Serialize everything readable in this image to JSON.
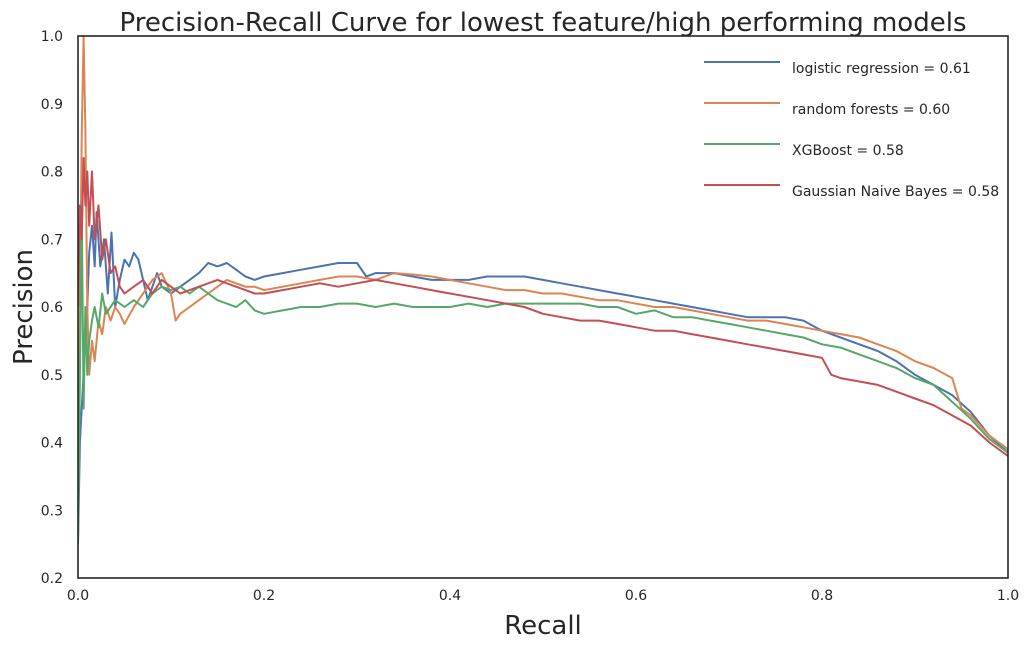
{
  "chart_data": {
    "type": "line",
    "title": "Precision-Recall Curve for lowest feature/high performing models",
    "xlabel": "Recall",
    "ylabel": "Precision",
    "xlim": [
      0.0,
      1.0
    ],
    "ylim": [
      0.2,
      1.0
    ],
    "xticks": [
      "0.0",
      "0.2",
      "0.4",
      "0.6",
      "0.8",
      "1.0"
    ],
    "yticks": [
      "0.2",
      "0.3",
      "0.4",
      "0.5",
      "0.6",
      "0.7",
      "0.8",
      "0.9",
      "1.0"
    ],
    "grid": false,
    "legend_position": "top-right",
    "series": [
      {
        "name": "logistic regression = 0.61",
        "color": "#4c72b0",
        "points": [
          [
            0.0,
            0.25
          ],
          [
            0.002,
            0.4
          ],
          [
            0.004,
            0.45
          ],
          [
            0.006,
            0.5
          ],
          [
            0.008,
            0.55
          ],
          [
            0.01,
            0.6
          ],
          [
            0.012,
            0.68
          ],
          [
            0.015,
            0.72
          ],
          [
            0.018,
            0.66
          ],
          [
            0.02,
            0.74
          ],
          [
            0.024,
            0.66
          ],
          [
            0.028,
            0.7
          ],
          [
            0.032,
            0.62
          ],
          [
            0.036,
            0.71
          ],
          [
            0.04,
            0.6
          ],
          [
            0.045,
            0.64
          ],
          [
            0.05,
            0.67
          ],
          [
            0.055,
            0.66
          ],
          [
            0.06,
            0.68
          ],
          [
            0.065,
            0.67
          ],
          [
            0.07,
            0.64
          ],
          [
            0.075,
            0.61
          ],
          [
            0.08,
            0.63
          ],
          [
            0.085,
            0.65
          ],
          [
            0.09,
            0.63
          ],
          [
            0.1,
            0.62
          ],
          [
            0.11,
            0.63
          ],
          [
            0.12,
            0.64
          ],
          [
            0.13,
            0.65
          ],
          [
            0.14,
            0.665
          ],
          [
            0.15,
            0.66
          ],
          [
            0.16,
            0.665
          ],
          [
            0.17,
            0.655
          ],
          [
            0.18,
            0.645
          ],
          [
            0.19,
            0.64
          ],
          [
            0.2,
            0.645
          ],
          [
            0.22,
            0.65
          ],
          [
            0.24,
            0.655
          ],
          [
            0.26,
            0.66
          ],
          [
            0.28,
            0.665
          ],
          [
            0.3,
            0.665
          ],
          [
            0.31,
            0.645
          ],
          [
            0.32,
            0.65
          ],
          [
            0.34,
            0.65
          ],
          [
            0.36,
            0.645
          ],
          [
            0.38,
            0.64
          ],
          [
            0.4,
            0.64
          ],
          [
            0.42,
            0.64
          ],
          [
            0.44,
            0.645
          ],
          [
            0.46,
            0.645
          ],
          [
            0.48,
            0.645
          ],
          [
            0.5,
            0.64
          ],
          [
            0.52,
            0.635
          ],
          [
            0.54,
            0.63
          ],
          [
            0.56,
            0.625
          ],
          [
            0.58,
            0.62
          ],
          [
            0.6,
            0.615
          ],
          [
            0.62,
            0.61
          ],
          [
            0.64,
            0.605
          ],
          [
            0.66,
            0.6
          ],
          [
            0.68,
            0.595
          ],
          [
            0.7,
            0.59
          ],
          [
            0.72,
            0.585
          ],
          [
            0.74,
            0.585
          ],
          [
            0.76,
            0.585
          ],
          [
            0.78,
            0.58
          ],
          [
            0.8,
            0.565
          ],
          [
            0.82,
            0.555
          ],
          [
            0.84,
            0.545
          ],
          [
            0.86,
            0.535
          ],
          [
            0.88,
            0.52
          ],
          [
            0.9,
            0.5
          ],
          [
            0.92,
            0.485
          ],
          [
            0.94,
            0.47
          ],
          [
            0.96,
            0.445
          ],
          [
            0.98,
            0.41
          ],
          [
            1.0,
            0.385
          ]
        ]
      },
      {
        "name": "random forests = 0.60",
        "color": "#dd8452",
        "points": [
          [
            0.0,
            0.35
          ],
          [
            0.002,
            0.6
          ],
          [
            0.004,
            0.85
          ],
          [
            0.006,
            1.0
          ],
          [
            0.008,
            0.86
          ],
          [
            0.01,
            0.6
          ],
          [
            0.012,
            0.5
          ],
          [
            0.015,
            0.55
          ],
          [
            0.018,
            0.52
          ],
          [
            0.022,
            0.58
          ],
          [
            0.026,
            0.56
          ],
          [
            0.03,
            0.6
          ],
          [
            0.035,
            0.58
          ],
          [
            0.04,
            0.6
          ],
          [
            0.045,
            0.59
          ],
          [
            0.05,
            0.575
          ],
          [
            0.06,
            0.6
          ],
          [
            0.07,
            0.62
          ],
          [
            0.08,
            0.64
          ],
          [
            0.09,
            0.65
          ],
          [
            0.1,
            0.62
          ],
          [
            0.105,
            0.58
          ],
          [
            0.11,
            0.59
          ],
          [
            0.12,
            0.6
          ],
          [
            0.13,
            0.61
          ],
          [
            0.14,
            0.62
          ],
          [
            0.15,
            0.63
          ],
          [
            0.16,
            0.64
          ],
          [
            0.17,
            0.635
          ],
          [
            0.18,
            0.63
          ],
          [
            0.19,
            0.63
          ],
          [
            0.2,
            0.625
          ],
          [
            0.22,
            0.63
          ],
          [
            0.24,
            0.635
          ],
          [
            0.26,
            0.64
          ],
          [
            0.28,
            0.645
          ],
          [
            0.3,
            0.645
          ],
          [
            0.32,
            0.64
          ],
          [
            0.34,
            0.65
          ],
          [
            0.36,
            0.648
          ],
          [
            0.38,
            0.645
          ],
          [
            0.4,
            0.64
          ],
          [
            0.42,
            0.635
          ],
          [
            0.44,
            0.63
          ],
          [
            0.46,
            0.625
          ],
          [
            0.48,
            0.625
          ],
          [
            0.5,
            0.62
          ],
          [
            0.52,
            0.62
          ],
          [
            0.54,
            0.615
          ],
          [
            0.56,
            0.61
          ],
          [
            0.58,
            0.61
          ],
          [
            0.6,
            0.605
          ],
          [
            0.62,
            0.6
          ],
          [
            0.64,
            0.6
          ],
          [
            0.66,
            0.595
          ],
          [
            0.68,
            0.59
          ],
          [
            0.7,
            0.585
          ],
          [
            0.72,
            0.58
          ],
          [
            0.74,
            0.58
          ],
          [
            0.76,
            0.575
          ],
          [
            0.78,
            0.57
          ],
          [
            0.8,
            0.565
          ],
          [
            0.82,
            0.56
          ],
          [
            0.84,
            0.555
          ],
          [
            0.86,
            0.545
          ],
          [
            0.88,
            0.535
          ],
          [
            0.9,
            0.52
          ],
          [
            0.92,
            0.51
          ],
          [
            0.94,
            0.495
          ],
          [
            0.95,
            0.45
          ],
          [
            0.96,
            0.44
          ],
          [
            0.98,
            0.41
          ],
          [
            1.0,
            0.39
          ]
        ]
      },
      {
        "name": "XGBoost = 0.58",
        "color": "#55a868",
        "points": [
          [
            0.0,
            0.25
          ],
          [
            0.002,
            0.5
          ],
          [
            0.004,
            0.75
          ],
          [
            0.006,
            0.45
          ],
          [
            0.008,
            0.6
          ],
          [
            0.01,
            0.5
          ],
          [
            0.012,
            0.55
          ],
          [
            0.015,
            0.58
          ],
          [
            0.018,
            0.6
          ],
          [
            0.022,
            0.57
          ],
          [
            0.026,
            0.62
          ],
          [
            0.03,
            0.59
          ],
          [
            0.035,
            0.6
          ],
          [
            0.04,
            0.61
          ],
          [
            0.05,
            0.6
          ],
          [
            0.06,
            0.61
          ],
          [
            0.07,
            0.6
          ],
          [
            0.08,
            0.62
          ],
          [
            0.09,
            0.63
          ],
          [
            0.1,
            0.625
          ],
          [
            0.11,
            0.63
          ],
          [
            0.12,
            0.62
          ],
          [
            0.13,
            0.63
          ],
          [
            0.14,
            0.62
          ],
          [
            0.15,
            0.61
          ],
          [
            0.16,
            0.605
          ],
          [
            0.17,
            0.6
          ],
          [
            0.18,
            0.61
          ],
          [
            0.19,
            0.595
          ],
          [
            0.2,
            0.59
          ],
          [
            0.22,
            0.595
          ],
          [
            0.24,
            0.6
          ],
          [
            0.26,
            0.6
          ],
          [
            0.28,
            0.605
          ],
          [
            0.3,
            0.605
          ],
          [
            0.32,
            0.6
          ],
          [
            0.34,
            0.605
          ],
          [
            0.36,
            0.6
          ],
          [
            0.38,
            0.6
          ],
          [
            0.4,
            0.6
          ],
          [
            0.42,
            0.605
          ],
          [
            0.44,
            0.6
          ],
          [
            0.46,
            0.605
          ],
          [
            0.48,
            0.605
          ],
          [
            0.5,
            0.605
          ],
          [
            0.52,
            0.605
          ],
          [
            0.54,
            0.605
          ],
          [
            0.56,
            0.6
          ],
          [
            0.58,
            0.6
          ],
          [
            0.6,
            0.59
          ],
          [
            0.62,
            0.595
          ],
          [
            0.64,
            0.585
          ],
          [
            0.66,
            0.585
          ],
          [
            0.68,
            0.58
          ],
          [
            0.7,
            0.575
          ],
          [
            0.72,
            0.57
          ],
          [
            0.74,
            0.565
          ],
          [
            0.76,
            0.56
          ],
          [
            0.78,
            0.555
          ],
          [
            0.8,
            0.545
          ],
          [
            0.82,
            0.54
          ],
          [
            0.84,
            0.53
          ],
          [
            0.86,
            0.52
          ],
          [
            0.88,
            0.51
          ],
          [
            0.9,
            0.495
          ],
          [
            0.92,
            0.485
          ],
          [
            0.94,
            0.46
          ],
          [
            0.96,
            0.435
          ],
          [
            0.98,
            0.405
          ],
          [
            1.0,
            0.385
          ]
        ]
      },
      {
        "name": "Gaussian Naive Bayes = 0.58",
        "color": "#c44e52",
        "points": [
          [
            0.0,
            0.6
          ],
          [
            0.002,
            0.75
          ],
          [
            0.004,
            0.7
          ],
          [
            0.006,
            0.82
          ],
          [
            0.008,
            0.75
          ],
          [
            0.01,
            0.8
          ],
          [
            0.012,
            0.72
          ],
          [
            0.015,
            0.8
          ],
          [
            0.018,
            0.7
          ],
          [
            0.022,
            0.75
          ],
          [
            0.026,
            0.67
          ],
          [
            0.03,
            0.7
          ],
          [
            0.035,
            0.65
          ],
          [
            0.04,
            0.66
          ],
          [
            0.045,
            0.63
          ],
          [
            0.05,
            0.62
          ],
          [
            0.06,
            0.63
          ],
          [
            0.07,
            0.64
          ],
          [
            0.08,
            0.62
          ],
          [
            0.09,
            0.64
          ],
          [
            0.1,
            0.63
          ],
          [
            0.11,
            0.62
          ],
          [
            0.12,
            0.625
          ],
          [
            0.13,
            0.63
          ],
          [
            0.14,
            0.635
          ],
          [
            0.15,
            0.64
          ],
          [
            0.16,
            0.635
          ],
          [
            0.17,
            0.63
          ],
          [
            0.18,
            0.625
          ],
          [
            0.19,
            0.62
          ],
          [
            0.2,
            0.62
          ],
          [
            0.22,
            0.625
          ],
          [
            0.24,
            0.63
          ],
          [
            0.26,
            0.635
          ],
          [
            0.28,
            0.63
          ],
          [
            0.3,
            0.635
          ],
          [
            0.32,
            0.64
          ],
          [
            0.34,
            0.635
          ],
          [
            0.36,
            0.63
          ],
          [
            0.38,
            0.625
          ],
          [
            0.4,
            0.62
          ],
          [
            0.42,
            0.615
          ],
          [
            0.44,
            0.61
          ],
          [
            0.46,
            0.605
          ],
          [
            0.48,
            0.6
          ],
          [
            0.5,
            0.59
          ],
          [
            0.52,
            0.585
          ],
          [
            0.54,
            0.58
          ],
          [
            0.56,
            0.58
          ],
          [
            0.58,
            0.575
          ],
          [
            0.6,
            0.57
          ],
          [
            0.62,
            0.565
          ],
          [
            0.64,
            0.565
          ],
          [
            0.66,
            0.56
          ],
          [
            0.68,
            0.555
          ],
          [
            0.7,
            0.55
          ],
          [
            0.72,
            0.545
          ],
          [
            0.74,
            0.54
          ],
          [
            0.76,
            0.535
          ],
          [
            0.78,
            0.53
          ],
          [
            0.8,
            0.525
          ],
          [
            0.81,
            0.5
          ],
          [
            0.82,
            0.495
          ],
          [
            0.84,
            0.49
          ],
          [
            0.86,
            0.485
          ],
          [
            0.88,
            0.475
          ],
          [
            0.9,
            0.465
          ],
          [
            0.92,
            0.455
          ],
          [
            0.94,
            0.44
          ],
          [
            0.96,
            0.425
          ],
          [
            0.98,
            0.4
          ],
          [
            1.0,
            0.38
          ]
        ]
      }
    ]
  }
}
